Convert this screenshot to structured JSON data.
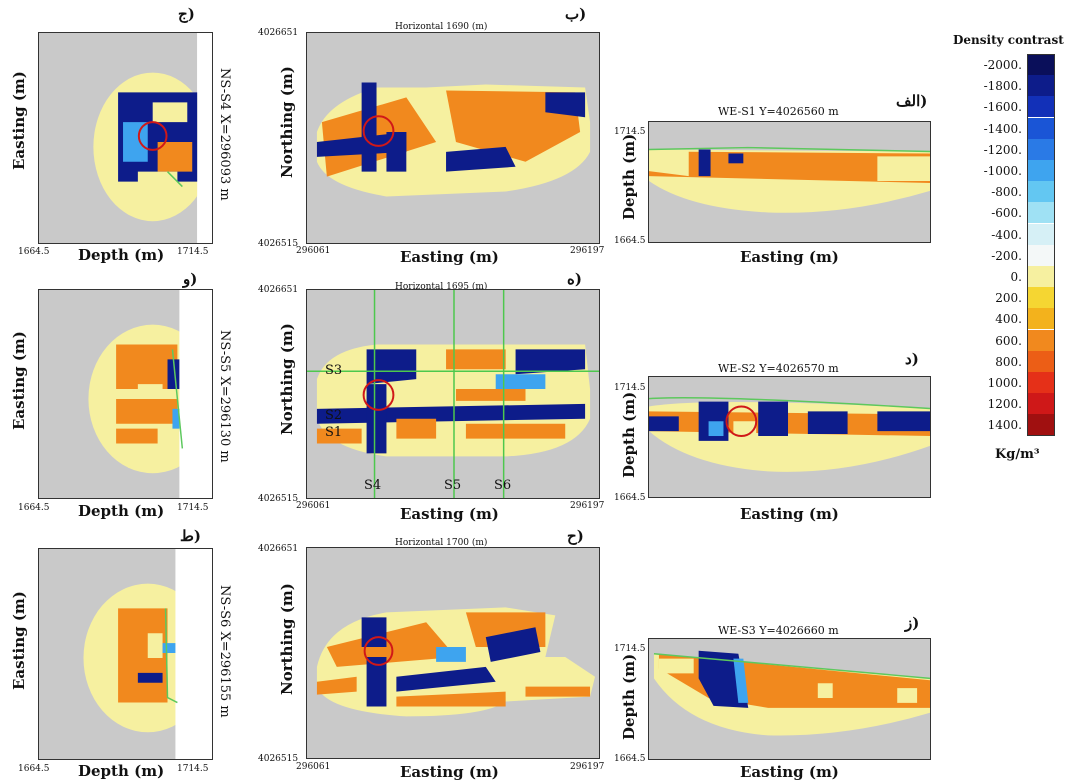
{
  "legend": {
    "title": "Density contrast",
    "units": "Kg/m³",
    "labels": [
      "-2000.",
      "-1800.",
      "-1600.",
      "-1400.",
      "-1200.",
      "-1000.",
      "-800.",
      "-600.",
      "-400.",
      "-200.",
      "0.",
      "200.",
      "400.",
      "600.",
      "800.",
      "1000.",
      "1200.",
      "1400."
    ],
    "colors": [
      "#0a0f5a",
      "#0d1c8a",
      "#1230b8",
      "#1a55d6",
      "#2a7ae6",
      "#3ea4ef",
      "#63c7f2",
      "#9fe1f4",
      "#d6f0f6",
      "#f4f8f8",
      "#f6f0a0",
      "#f5d632",
      "#f3b21c",
      "#f1891e",
      "#ec5e16",
      "#e53018",
      "#cf1818",
      "#a01010"
    ]
  },
  "rows": [
    {
      "ns": {
        "letter": "ج)",
        "section": "NS-S4  X=296093 m",
        "xlabel": "Depth (m)",
        "ylabel": "Easting (m)",
        "tick_left": "1664.5",
        "tick_right": "1714.5"
      },
      "horiz": {
        "letter": "ب)",
        "title": "Horizontal 1690 (m)",
        "xlabel": "Easting (m)",
        "ylabel": "Northing (m)",
        "tick_top": "4026651",
        "tick_bottom": "4026515",
        "tick_xleft": "296061",
        "tick_xright": "296197"
      },
      "we": {
        "letter": "الف)",
        "section": "WE-S1   Y=4026560 m",
        "xlabel": "Easting (m)",
        "ylabel": "Depth (m)",
        "tick_top": "1714.5",
        "tick_bottom": "1664.5"
      }
    },
    {
      "ns": {
        "letter": "و)",
        "section": "NS-S5  X=296130 m",
        "xlabel": "Depth (m)",
        "ylabel": "Easting (m)",
        "tick_left": "1664.5",
        "tick_right": "1714.5"
      },
      "horiz": {
        "letter": "ه)",
        "title": "Horizontal 1695 (m)",
        "xlabel": "Easting (m)",
        "ylabel": "Northing (m)",
        "tick_top": "4026651",
        "tick_bottom": "4026515",
        "tick_xleft": "296061",
        "tick_xright": "296197",
        "profile_labels": {
          "s1": "S1",
          "s2": "S2",
          "s3": "S3",
          "s4": "S4",
          "s5": "S5",
          "s6": "S6"
        }
      },
      "we": {
        "letter": "د)",
        "section": "WE-S2   Y=4026570 m",
        "xlabel": "Easting (m)",
        "ylabel": "Depth (m)",
        "tick_top": "1714.5",
        "tick_bottom": "1664.5"
      }
    },
    {
      "ns": {
        "letter": "ط)",
        "section": "NS-S6  X=296155 m",
        "xlabel": "Depth (m)",
        "ylabel": "Easting (m)",
        "tick_left": "1664.5",
        "tick_right": "1714.5"
      },
      "horiz": {
        "letter": "ح)",
        "title": "Horizontal 1700 (m)",
        "xlabel": "Easting (m)",
        "ylabel": "Northing (m)",
        "tick_top": "4026651",
        "tick_bottom": "4026515",
        "tick_xleft": "296061",
        "tick_xright": "296197"
      },
      "we": {
        "letter": "ز)",
        "section": "WE-S3   Y=4026660 m",
        "xlabel": "Easting (m)",
        "ylabel": "Depth (m)",
        "tick_top": "1714.5",
        "tick_bottom": "1664.5"
      }
    }
  ]
}
